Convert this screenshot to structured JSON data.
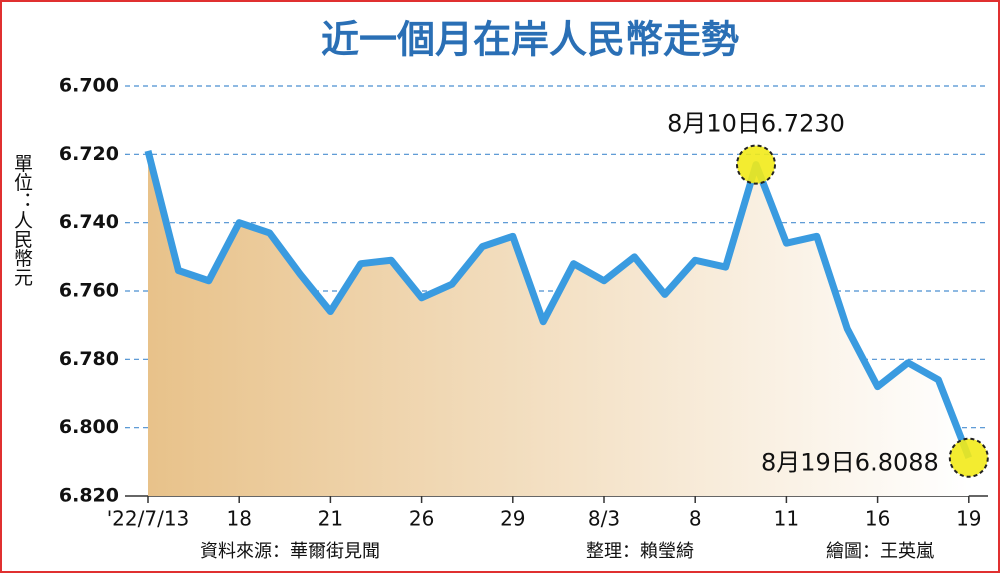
{
  "chart_data": {
    "type": "line",
    "title": "近一個月在岸人民幣走勢",
    "y_label": "單位：人民幣元",
    "categories": [
      "'22/7/13",
      null,
      null,
      "18",
      null,
      null,
      "21",
      null,
      null,
      "26",
      null,
      null,
      "29",
      null,
      null,
      "8/3",
      null,
      null,
      "8",
      null,
      null,
      "11",
      null,
      null,
      "16",
      null,
      null,
      "19"
    ],
    "series": [
      {
        "name": null,
        "color": "#3a9be0",
        "values": [
          6.719,
          6.754,
          6.757,
          6.74,
          6.743,
          6.755,
          6.766,
          6.752,
          6.751,
          6.762,
          6.758,
          6.747,
          6.744,
          6.769,
          6.752,
          6.757,
          6.75,
          6.761,
          6.751,
          6.753,
          6.723,
          6.746,
          6.744,
          6.771,
          6.788,
          6.781,
          6.786,
          6.8088
        ]
      }
    ],
    "ylim": [
      6.7,
      6.82
    ],
    "y_inverted": true,
    "yticks": [
      {
        "value": 6.7,
        "label": "6.700"
      },
      {
        "value": 6.72,
        "label": "6.720"
      },
      {
        "value": 6.74,
        "label": "6.740"
      },
      {
        "value": 6.76,
        "label": "6.760"
      },
      {
        "value": 6.78,
        "label": "6.780"
      },
      {
        "value": 6.8,
        "label": "6.800"
      },
      {
        "value": 6.82,
        "label": "6.820"
      }
    ],
    "grid": true,
    "annotations": [
      "8月10日6.7230",
      "8月19日6.8088"
    ],
    "highlight_color": "#f2ea1a",
    "footer": [
      "資料來源：華爾街見聞",
      "整理：賴瑩綺",
      "繪圖：王英嵐"
    ]
  }
}
